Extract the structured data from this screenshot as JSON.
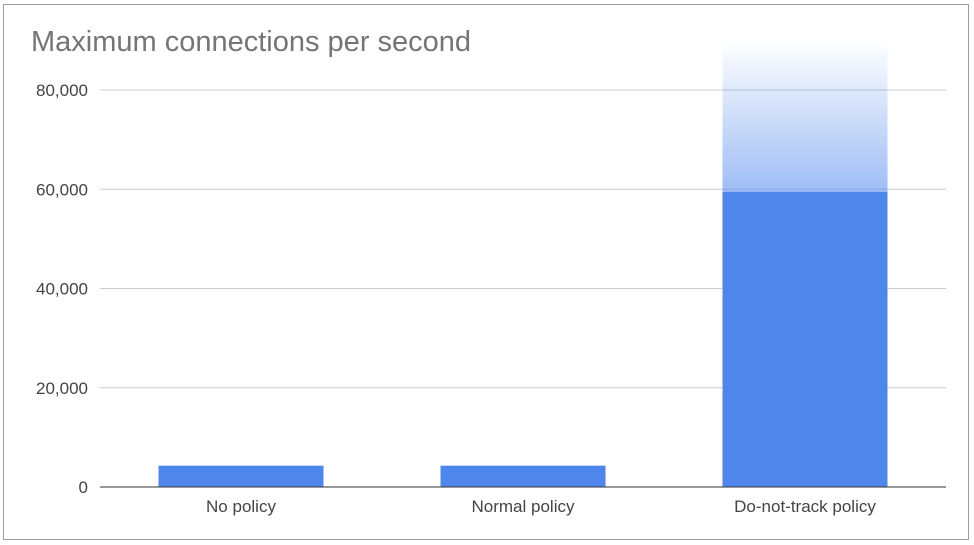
{
  "chart_data": {
    "type": "bar",
    "title": "Maximum connections per second",
    "xlabel": "",
    "ylabel": "",
    "categories": [
      "No policy",
      "Normal policy",
      "Do-not-track policy"
    ],
    "values": [
      4300,
      4300,
      59500
    ],
    "bar_color": "#4f86ec",
    "extended_bar": {
      "category": "Do-not-track policy",
      "fades_to": 90000
    },
    "ylim": [
      0,
      80000
    ],
    "yticks": [
      {
        "value": 0,
        "label": "0"
      },
      {
        "value": 20000,
        "label": "20,000"
      },
      {
        "value": 40000,
        "label": "40,000"
      },
      {
        "value": 60000,
        "label": "60,000"
      },
      {
        "value": 80000,
        "label": "80,000"
      }
    ],
    "grid": true,
    "legend": "none"
  }
}
